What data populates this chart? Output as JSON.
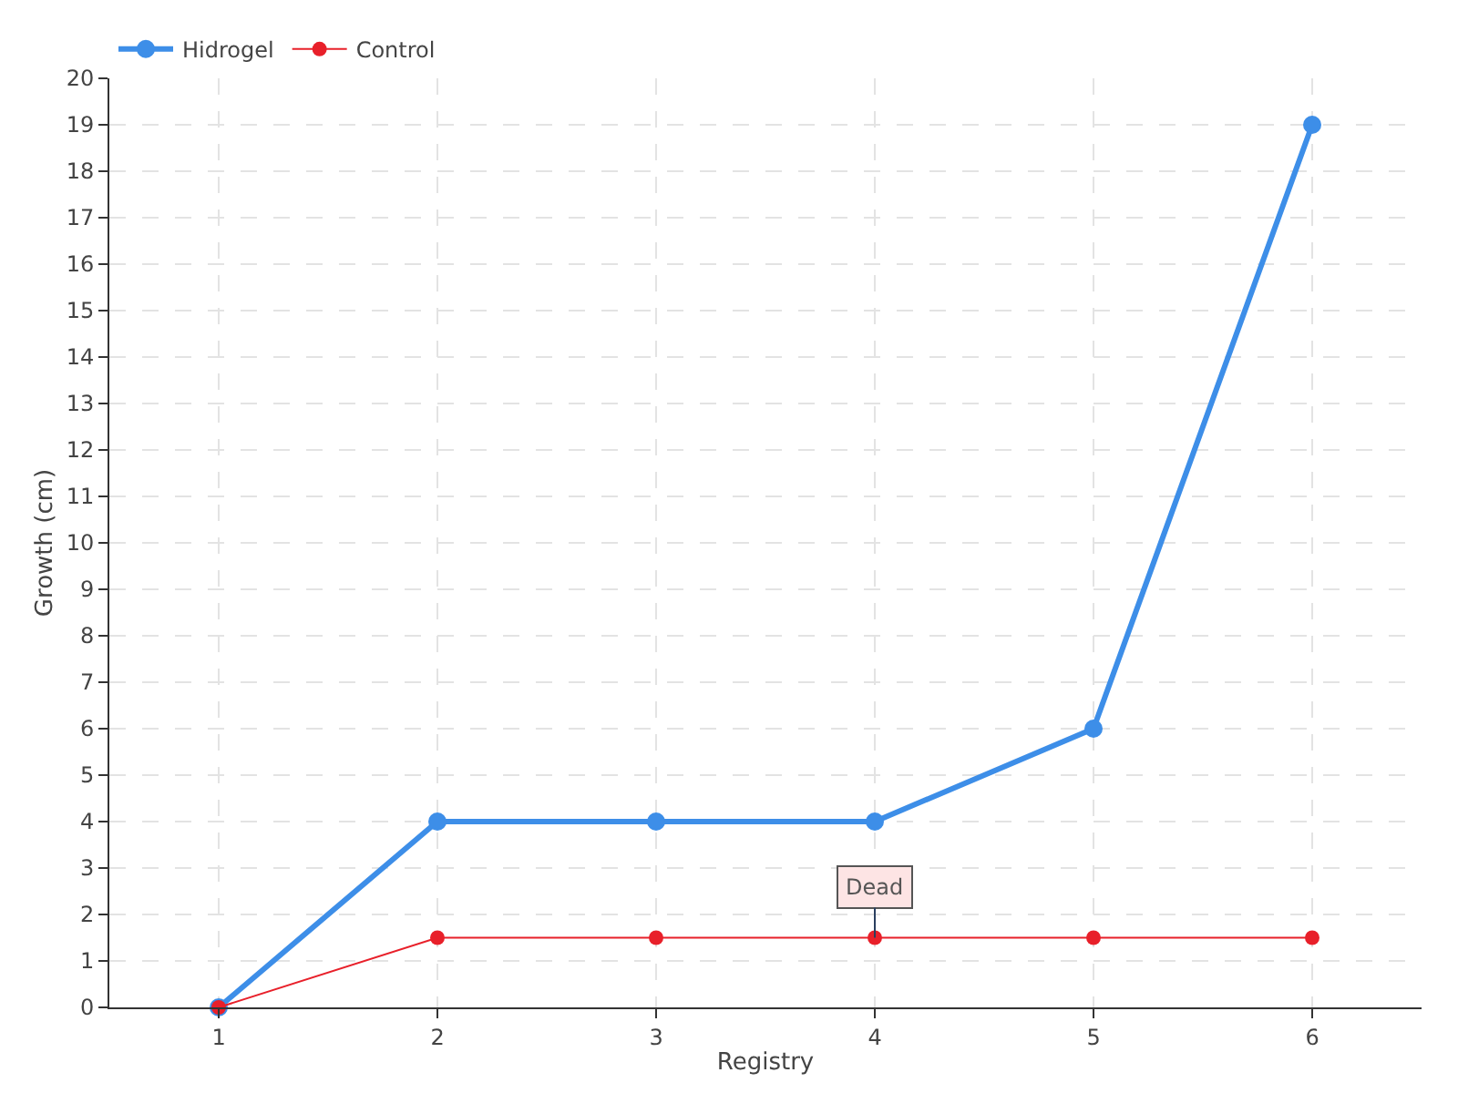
{
  "chart_data": {
    "type": "line",
    "xlabel": "Registry",
    "ylabel": "Growth (cm)",
    "x": [
      1,
      2,
      3,
      4,
      5,
      6
    ],
    "xlim": [
      0.5,
      6.5
    ],
    "xticks": [
      1,
      2,
      3,
      4,
      5,
      6
    ],
    "ylim": [
      0,
      20
    ],
    "yticks": [
      0,
      1,
      2,
      3,
      4,
      5,
      6,
      7,
      8,
      9,
      10,
      11,
      12,
      13,
      14,
      15,
      16,
      17,
      18,
      19,
      20
    ],
    "series": [
      {
        "name": "Hidrogel",
        "color": "#3d8ee8",
        "values": [
          0,
          4,
          4,
          4,
          6,
          19
        ]
      },
      {
        "name": "Control",
        "color": "#e8202a",
        "values": [
          0,
          1.5,
          1.5,
          1.5,
          1.5,
          1.5
        ]
      }
    ],
    "annotations": [
      {
        "text": "Dead",
        "x": 4,
        "y": 1.5
      }
    ],
    "grid": true,
    "legend": "top left",
    "marker": "circle",
    "line_style": "solid"
  }
}
